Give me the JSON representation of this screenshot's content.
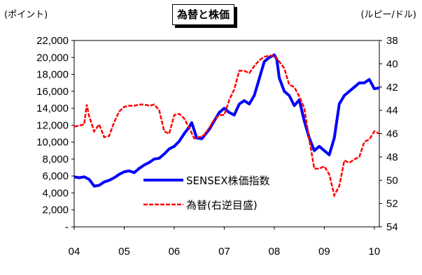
{
  "chart_data": {
    "type": "line",
    "title": "為替と株価",
    "ylabel_left": "(ポイント)",
    "ylabel_right": "(ルピー/ドル)",
    "x_ticks": [
      "04",
      "05",
      "06",
      "07",
      "08",
      "09",
      "10"
    ],
    "y_left_ticks": [
      "22,000",
      "20,000",
      "18,000",
      "16,000",
      "14,000",
      "12,000",
      "10,000",
      "8,000",
      "6,000",
      "4,000",
      "2,000",
      "-"
    ],
    "y_right_ticks": [
      "38",
      "40",
      "42",
      "44",
      "46",
      "48",
      "50",
      "52",
      "54"
    ],
    "ylim_left": [
      0,
      22000
    ],
    "ylim_right_inverted": [
      38,
      54
    ],
    "xlim": [
      2004,
      2010.1
    ],
    "legend_position": "center-right",
    "series": [
      {
        "name": "SENSEX株価指数",
        "axis": "left",
        "color": "#0000ff",
        "x": [
          2004.0,
          2004.1,
          2004.2,
          2004.3,
          2004.4,
          2004.5,
          2004.6,
          2004.7,
          2004.8,
          2004.9,
          2005.0,
          2005.1,
          2005.2,
          2005.3,
          2005.4,
          2005.5,
          2005.6,
          2005.7,
          2005.8,
          2005.9,
          2006.0,
          2006.1,
          2006.2,
          2006.3,
          2006.35,
          2006.45,
          2006.55,
          2006.7,
          2006.8,
          2006.9,
          2007.0,
          2007.1,
          2007.2,
          2007.3,
          2007.4,
          2007.5,
          2007.6,
          2007.7,
          2007.8,
          2007.9,
          2008.0,
          2008.05,
          2008.1,
          2008.2,
          2008.3,
          2008.4,
          2008.5,
          2008.6,
          2008.7,
          2008.8,
          2008.9,
          2009.0,
          2009.1,
          2009.2,
          2009.3,
          2009.4,
          2009.5,
          2009.6,
          2009.7,
          2009.8,
          2009.9,
          2010.0,
          2010.1
        ],
        "values": [
          5900,
          5800,
          5900,
          5600,
          4800,
          4900,
          5300,
          5500,
          5800,
          6200,
          6500,
          6600,
          6400,
          6900,
          7300,
          7600,
          8000,
          8100,
          8600,
          9200,
          9500,
          10100,
          11000,
          11800,
          12300,
          10500,
          10400,
          11500,
          12500,
          13500,
          14000,
          13500,
          13200,
          14500,
          14900,
          14500,
          15500,
          17500,
          19500,
          20000,
          20300,
          19800,
          17600,
          16000,
          15500,
          14300,
          15000,
          12500,
          10500,
          9000,
          9500,
          9000,
          8500,
          10500,
          14500,
          15500,
          16000,
          16500,
          17000,
          17000,
          17400,
          16300,
          16400
        ]
      },
      {
        "name": "為替(右逆目盛)",
        "axis": "right",
        "color": "#ff0000",
        "x": [
          2004.0,
          2004.1,
          2004.2,
          2004.25,
          2004.3,
          2004.4,
          2004.5,
          2004.6,
          2004.7,
          2004.8,
          2004.9,
          2005.0,
          2005.1,
          2005.2,
          2005.3,
          2005.4,
          2005.5,
          2005.6,
          2005.7,
          2005.8,
          2005.9,
          2006.0,
          2006.1,
          2006.2,
          2006.3,
          2006.4,
          2006.5,
          2006.6,
          2006.7,
          2006.8,
          2006.9,
          2007.0,
          2007.1,
          2007.2,
          2007.3,
          2007.4,
          2007.5,
          2007.6,
          2007.7,
          2007.8,
          2007.9,
          2008.0,
          2008.1,
          2008.2,
          2008.3,
          2008.4,
          2008.5,
          2008.6,
          2008.7,
          2008.8,
          2008.9,
          2009.0,
          2009.1,
          2009.2,
          2009.3,
          2009.4,
          2009.5,
          2009.6,
          2009.7,
          2009.8,
          2009.9,
          2010.0,
          2010.1
        ],
        "values": [
          45.4,
          45.3,
          45.2,
          43.5,
          44.5,
          45.8,
          45.2,
          46.3,
          46.2,
          45.0,
          44.1,
          43.7,
          43.6,
          43.6,
          43.5,
          43.5,
          43.6,
          43.5,
          44.0,
          45.8,
          46.0,
          44.4,
          44.3,
          44.7,
          45.5,
          46.4,
          46.3,
          46.1,
          45.5,
          44.8,
          44.4,
          44.4,
          43.1,
          42.2,
          40.6,
          40.6,
          40.8,
          40.2,
          39.7,
          39.4,
          39.3,
          39.3,
          39.8,
          40.4,
          41.8,
          42.0,
          42.8,
          43.8,
          46.5,
          49.0,
          49.0,
          48.8,
          49.5,
          51.3,
          50.5,
          48.3,
          48.5,
          48.2,
          48.0,
          46.7,
          46.5,
          45.8,
          46.0
        ]
      }
    ]
  }
}
